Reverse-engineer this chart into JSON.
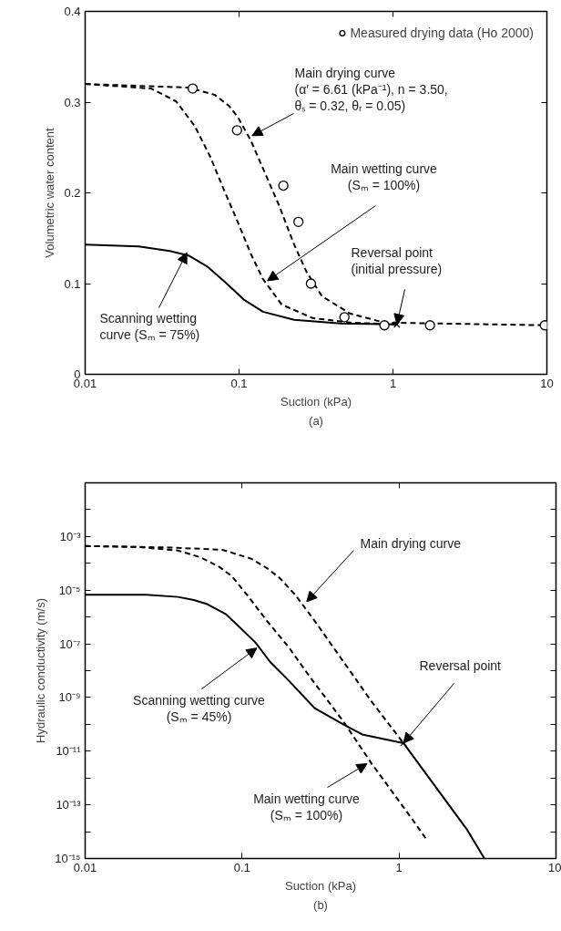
{
  "chart_data": [
    {
      "type": "line",
      "title": "(a)",
      "xlabel": "Suction (kPa)",
      "ylabel": "Volumetric water content",
      "log": "x",
      "grid": false,
      "legend": "top right",
      "xlim": [
        0.01,
        10
      ],
      "ylim": [
        0,
        0.4
      ],
      "xticks": [
        0.01,
        0.1,
        1,
        10
      ],
      "yticks": [
        0,
        0.1,
        0.2,
        0.3,
        0.4
      ],
      "series": [
        {
          "line_style": "dashed",
          "color": "#000000",
          "x": [
            0.01,
            0.047,
            0.0695,
            0.0858,
            0.0986,
            0.119,
            0.143,
            0.181,
            0.228,
            0.274,
            0.346,
            0.526,
            0.877,
            10
          ],
          "values": [
            0.32,
            0.316,
            0.308,
            0.296,
            0.283,
            0.258,
            0.227,
            0.187,
            0.143,
            0.113,
            0.086,
            0.067,
            0.057,
            0.054
          ]
        },
        {
          "line_style": "dashed",
          "color": "#000000",
          "x": [
            0.01,
            0.0268,
            0.0389,
            0.0514,
            0.0649,
            0.0781,
            0.0986,
            0.119,
            0.143,
            0.189,
            0.301,
            0.526,
            1.06
          ],
          "values": [
            0.32,
            0.315,
            0.301,
            0.274,
            0.24,
            0.207,
            0.167,
            0.133,
            0.105,
            0.077,
            0.062,
            0.057,
            0.055
          ]
        },
        {
          "line_style": "solid",
          "color": "#000000",
          "x": [
            0.01,
            0.0223,
            0.0354,
            0.0469,
            0.0619,
            0.0819,
            0.108,
            0.143,
            0.228,
            0.458,
            1.06
          ],
          "values": [
            0.143,
            0.141,
            0.136,
            0.131,
            0.119,
            0.101,
            0.082,
            0.069,
            0.06,
            0.056,
            0.055
          ]
        },
        {
          "type": "scatter",
          "marker": "circle",
          "name": "Measured drying data (Ho 2000)",
          "color": "#000000",
          "x": [
            0.05,
            0.097,
            0.194,
            0.243,
            0.293,
            0.484,
            0.88,
            1.74,
            9.7
          ],
          "values": [
            0.315,
            0.269,
            0.208,
            0.168,
            0.1,
            0.063,
            0.054,
            0.054,
            0.054
          ]
        },
        {
          "type": "scatter",
          "marker": "cross",
          "color": "#000000",
          "x": [
            1.06
          ],
          "values": [
            0.055
          ]
        }
      ],
      "annotations": [
        {
          "text": "Main drying curve\n(α′ = 6.61 (kPa⁻¹), n = 3.50,\nθₛ = 0.32, θᵣ = 0.05)",
          "x": 0.1216,
          "y": 0.263
        },
        {
          "text": "Main wetting curve\n(Sₘ = 100%)",
          "x": 0.153,
          "y": 0.103
        },
        {
          "text": "Reversal point\n(initial pressure)",
          "x": 1.06,
          "y": 0.055
        },
        {
          "text": "Scanning wetting\ncurve (Sₘ = 75%)",
          "x": 0.0458,
          "y": 0.134
        }
      ]
    },
    {
      "type": "line",
      "title": "(b)",
      "xlabel": "Suction (kPa)",
      "ylabel": "Hydraulic conductivity (m/s)",
      "log": "xy",
      "grid": false,
      "xlim": [
        0.01,
        10
      ],
      "ylim": [
        1e-15,
        0.1
      ],
      "xticks": [
        0.01,
        0.1,
        1,
        10
      ],
      "yticks": [
        {
          "value": 1e-15,
          "label": "10⁻¹⁵"
        },
        {
          "value": 1e-14,
          "label": null
        },
        {
          "value": 1e-13,
          "label": "10⁻¹³"
        },
        {
          "value": 1e-12,
          "label": null
        },
        {
          "value": 1e-11,
          "label": "10⁻¹¹"
        },
        {
          "value": 1e-10,
          "label": null
        },
        {
          "value": 1e-09,
          "label": "10⁻⁹"
        },
        {
          "value": 1e-08,
          "label": null
        },
        {
          "value": 1e-07,
          "label": "10⁻⁷"
        },
        {
          "value": 1e-06,
          "label": null
        },
        {
          "value": 1e-05,
          "label": "10⁻⁵"
        },
        {
          "value": 0.0001,
          "label": null
        },
        {
          "value": 0.001,
          "label": "10⁻³"
        },
        {
          "value": 0.01,
          "label": null
        }
      ],
      "series": [
        {
          "line_style": "dashed",
          "color": "#000000",
          "x": [
            0.01,
            0.0339,
            0.0748,
            0.114,
            0.144,
            0.173,
            0.219,
            0.29,
            0.383,
            0.506,
            0.67,
            1.067
          ],
          "values": [
            0.00044,
            0.00039,
            0.00032,
            0.00015,
            6.6e-05,
            2.9e-05,
            6.5e-06,
            7.2e-07,
            7.1e-08,
            7.1e-09,
            6.9e-10,
            2e-11
          ]
        },
        {
          "line_style": "dashed",
          "color": "#000000",
          "x": [
            0.01,
            0.0213,
            0.039,
            0.054,
            0.0715,
            0.0861,
            0.106,
            0.144,
            0.1995,
            0.264,
            0.441,
            0.67,
            1.2,
            1.5
          ],
          "values": [
            0.00044,
            0.00041,
            0.0003,
            0.00017,
            7.4e-05,
            3.3e-05,
            7.4e-06,
            7.2e-07,
            7.1e-08,
            7.1e-09,
            1.3e-10,
            3.4e-12,
            3.2e-14,
            5e-15
          ]
        },
        {
          "line_style": "solid",
          "color": "#000000",
          "x": [
            0.01,
            0.0245,
            0.039,
            0.0492,
            0.0593,
            0.0785,
            0.099,
            0.122,
            0.151,
            0.1995,
            0.29,
            0.441,
            0.582,
            1.067,
            2.71,
            3.5
          ],
          "values": [
            6.8e-06,
            6.8e-06,
            5.6e-06,
            4.3e-06,
            3.1e-06,
            1.3e-06,
            3.6e-07,
            1.1e-07,
            2.1e-08,
            4.1e-09,
            4e-10,
            1e-10,
            4.2e-11,
            2e-11,
            1.2e-14,
            1e-15
          ]
        },
        {
          "type": "scatter",
          "marker": "cross",
          "color": "#000000",
          "x": [
            1.067
          ],
          "values": [
            2e-11
          ]
        }
      ],
      "annotations": [
        {
          "text": "Main drying curve",
          "x": 0.258,
          "y": 3.7e-06
        },
        {
          "text": "Reversal point",
          "x": 1.067,
          "y": 2e-11
        },
        {
          "text": "Scanning wetting curve\n(Sₘ = 45%)",
          "x": 0.124,
          "y": 7e-08
        },
        {
          "text": "Main wetting curve\n(Sₘ = 100%)",
          "x": 0.625,
          "y": 3.4e-12
        }
      ]
    }
  ]
}
